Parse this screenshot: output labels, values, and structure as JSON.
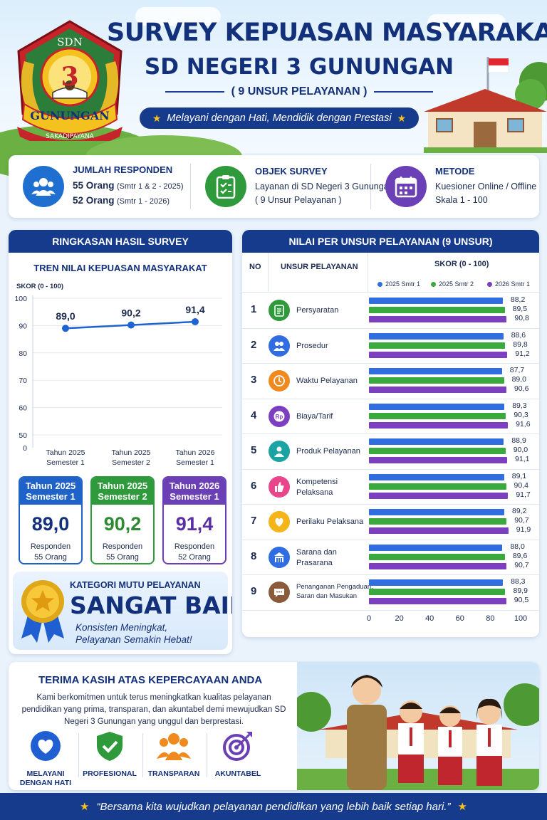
{
  "header": {
    "title_line1": "SURVEY KEPUASAN MASYARAKAT",
    "title_line2": "SD NEGERI 3 GUNUNGAN",
    "subtitle": "( 9 UNSUR PELAYANAN )",
    "tagline": "Melayani dengan Hati, Mendidik dengan Prestasi",
    "logo": {
      "top": "SDN",
      "number": "3",
      "ribbon": "GUNUNGAN",
      "motto": "SAKADIPAYANA"
    }
  },
  "info": [
    {
      "icon": "users-icon",
      "heading": "JUMLAH RESPONDEN",
      "line1_main": "55 Orang",
      "line1_note": "(Smtr 1 & 2 - 2025)",
      "line2_main": "52 Orang",
      "line2_note": "(Smtr 1 - 2026)",
      "color": "#1f6fd1"
    },
    {
      "icon": "clipboard-icon",
      "heading": "OBJEK SURVEY",
      "line1": "Layanan di SD Negeri 3 Gunungan",
      "line2": "( 9 Unsur Pelayanan )",
      "color": "#2f9a3c"
    },
    {
      "icon": "calendar-icon",
      "heading": "METODE",
      "line1": "Kuesioner Online / Offline",
      "line2": "Skala 1 - 100",
      "color": "#6b3fb5"
    }
  ],
  "summary": {
    "header": "RINGKASAN HASIL SURVEY",
    "chart_title": "TREN NILAI KEPUASAN MASYARAKAT",
    "cards": [
      {
        "line1": "Tahun 2025",
        "line2": "Semester 1",
        "value": "89,0",
        "resp_label": "Responden",
        "resp_value": "55 Orang",
        "color": "#1f63c9"
      },
      {
        "line1": "Tahun 2025",
        "line2": "Semester 2",
        "value": "90,2",
        "resp_label": "Responden",
        "resp_value": "55 Orang",
        "color": "#2f9a3c"
      },
      {
        "line1": "Tahun 2026",
        "line2": "Semester 1",
        "value": "91,4",
        "resp_label": "Responden",
        "resp_value": "52 Orang",
        "color": "#6b3fb5"
      }
    ],
    "category": {
      "label": "KATEGORI MUTU PELAYANAN",
      "value": "SANGAT BAIK",
      "note1": "Konsisten Meningkat,",
      "note2": "Pelayanan Semakin Hebat!"
    }
  },
  "table": {
    "header": "NILAI PER UNSUR PELAYANAN (9 UNSUR)",
    "col_no": "NO",
    "col_unsur": "UNSUR PELAYANAN",
    "col_skor": "SKOR (0 - 100)"
  },
  "chart_data": [
    {
      "type": "line",
      "title": "TREN NILAI KEPUASAN MASYARAKAT",
      "ylabel": "SKOR (0 - 100)",
      "categories": [
        [
          "Tahun 2025",
          "Semester 1"
        ],
        [
          "Tahun 2025",
          "Semester 2"
        ],
        [
          "Tahun 2026",
          "Semester 1"
        ]
      ],
      "values": [
        89.0,
        90.2,
        91.4
      ],
      "labels": [
        "89,0",
        "90,2",
        "91,4"
      ],
      "yticks": [
        0,
        50,
        60,
        70,
        80,
        90,
        100
      ],
      "ylim": [
        0,
        100
      ],
      "color": "#1f63d1",
      "grid": true
    },
    {
      "type": "bar",
      "orientation": "horizontal",
      "xticks": [
        0,
        20,
        40,
        60,
        80,
        100
      ],
      "xlim": [
        0,
        100
      ],
      "legend": "top",
      "series": [
        {
          "name": "2025 Smtr 1",
          "color": "#2f6de0"
        },
        {
          "name": "2025 Smtr 2",
          "color": "#3aaa3f"
        },
        {
          "name": "2026 Smtr 1",
          "color": "#7b3fc0"
        }
      ],
      "items": [
        {
          "no": "1",
          "name": [
            "Persyaratan"
          ],
          "icon": "clipboard-icon",
          "color": "#2f9a3c",
          "values": [
            88.2,
            89.5,
            90.8
          ],
          "labels": [
            "88,2",
            "89,5",
            "90,8"
          ]
        },
        {
          "no": "2",
          "name": [
            "Prosedur"
          ],
          "icon": "users-icon",
          "color": "#2f6de0",
          "values": [
            88.6,
            89.8,
            91.2
          ],
          "labels": [
            "88,6",
            "89,8",
            "91,2"
          ]
        },
        {
          "no": "3",
          "name": [
            "Waktu Pelayanan"
          ],
          "icon": "clock-icon",
          "color": "#f08a1e",
          "values": [
            87.7,
            89.0,
            90.6
          ],
          "labels": [
            "87,7",
            "89,0",
            "90,6"
          ]
        },
        {
          "no": "4",
          "name": [
            "Biaya/Tarif"
          ],
          "icon": "money-icon",
          "color": "#7b3fc0",
          "values": [
            89.3,
            90.3,
            91.6
          ],
          "labels": [
            "89,3",
            "90,3",
            "91,6"
          ]
        },
        {
          "no": "5",
          "name": [
            "Produk Pelayanan"
          ],
          "icon": "person-icon",
          "color": "#1ba3a3",
          "values": [
            88.9,
            90.0,
            91.1
          ],
          "labels": [
            "88,9",
            "90,0",
            "91,1"
          ]
        },
        {
          "no": "6",
          "name": [
            "Kompetensi",
            "Pelaksana"
          ],
          "icon": "thumbs-up-icon",
          "color": "#e8458a",
          "values": [
            89.1,
            90.4,
            91.7
          ],
          "labels": [
            "89,1",
            "90,4",
            "91,7"
          ]
        },
        {
          "no": "7",
          "name": [
            "Perilaku Pelaksana"
          ],
          "icon": "heart-icon",
          "color": "#f4b41a",
          "values": [
            89.2,
            90.7,
            91.9
          ],
          "labels": [
            "89,2",
            "90,7",
            "91,9"
          ]
        },
        {
          "no": "8",
          "name": [
            "Sarana dan",
            "Prasarana"
          ],
          "icon": "building-icon",
          "color": "#2f6de0",
          "values": [
            88.0,
            89.6,
            90.7
          ],
          "labels": [
            "88,0",
            "89,6",
            "90,7"
          ]
        },
        {
          "no": "9",
          "name": [
            "Penanganan Pengaduan,",
            "Saran dan Masukan"
          ],
          "icon": "chat-icon",
          "color": "#8a5a3a",
          "values": [
            88.3,
            89.9,
            90.5
          ],
          "labels": [
            "88,3",
            "89,9",
            "90,5"
          ]
        }
      ]
    }
  ],
  "footer": {
    "title": "TERIMA KASIH ATAS KEPERCAYAAN ANDA",
    "paragraph": "Kami berkomitmen untuk terus meningkatkan kualitas pelayanan pendidikan yang prima, transparan, dan akuntabel demi mewujudkan SD Negeri 3 Gunungan yang unggul dan berprestasi.",
    "values": [
      {
        "line1": "MELAYANI",
        "line2": "DENGAN HATI",
        "icon": "heart-icon",
        "color": "#1f5fd1"
      },
      {
        "line1": "PROFESIONAL",
        "line2": "",
        "icon": "shield-check-icon",
        "color": "#2f9a3c"
      },
      {
        "line1": "TRANSPARAN",
        "line2": "",
        "icon": "group-icon",
        "color": "#f08a1e"
      },
      {
        "line1": "AKUNTABEL",
        "line2": "",
        "icon": "target-icon",
        "color": "#6b3fb5"
      }
    ],
    "quote": "“Bersama kita wujudkan pelayanan pendidikan yang lebih baik setiap hari.”"
  }
}
